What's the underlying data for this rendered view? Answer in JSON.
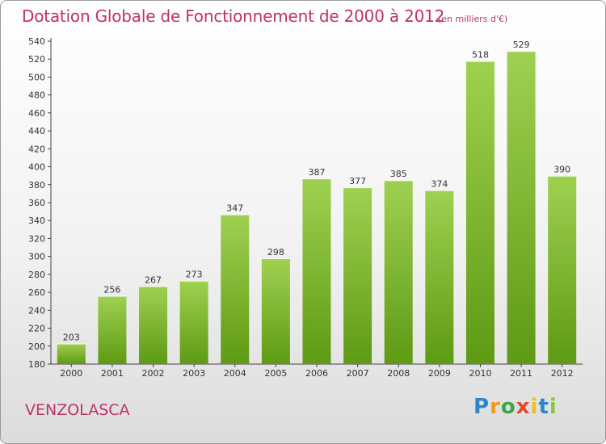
{
  "title": "Dotation Globale de Fonctionnement de 2000 à 2012",
  "unit_note": "(en milliers d'€)",
  "place_name": "VENZOLASCA",
  "logo": {
    "p": "P",
    "r": "r",
    "o": "o",
    "x": "x",
    "i1": "i",
    "t": "t",
    "i2": "i"
  },
  "colors": {
    "bar_light": "#9fd150",
    "bar_dark": "#5e9a14",
    "title": "#c0306a"
  },
  "chart_data": {
    "type": "bar",
    "title": "Dotation Globale de Fonctionnement de 2000 à 2012",
    "xlabel": "",
    "ylabel": "",
    "categories": [
      "2000",
      "2001",
      "2002",
      "2003",
      "2004",
      "2005",
      "2006",
      "2007",
      "2008",
      "2009",
      "2010",
      "2011",
      "2012"
    ],
    "values": [
      203,
      256,
      267,
      273,
      347,
      298,
      387,
      377,
      385,
      374,
      518,
      529,
      390
    ],
    "ylim": [
      180,
      540
    ],
    "yticks": [
      180,
      200,
      220,
      240,
      260,
      280,
      300,
      320,
      340,
      360,
      380,
      400,
      420,
      440,
      460,
      480,
      500,
      520,
      540
    ],
    "grid": false,
    "legend": "none"
  }
}
